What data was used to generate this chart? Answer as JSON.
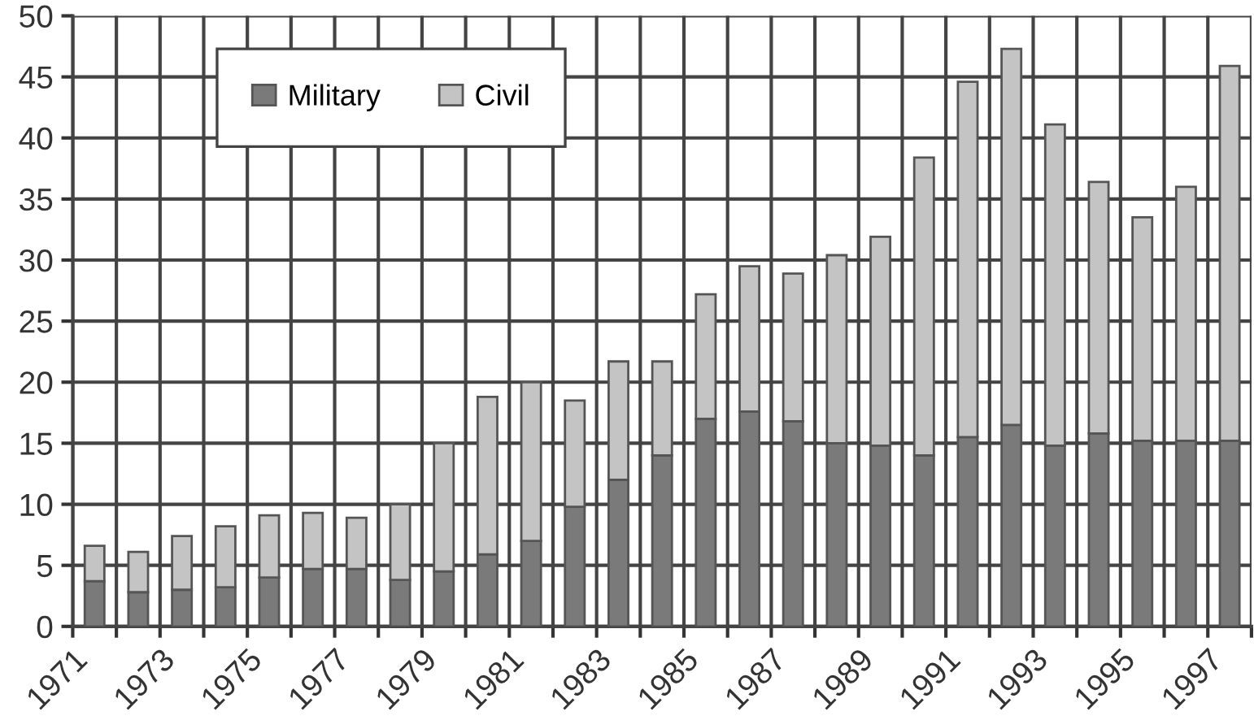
{
  "chart_data": {
    "type": "bar",
    "stacked": true,
    "x": [
      1971.5,
      1972.5,
      1973.5,
      1974.5,
      1975.5,
      1976.5,
      1977.5,
      1978.5,
      1979.5,
      1980.5,
      1981.5,
      1982.5,
      1983.5,
      1984.5,
      1985.5,
      1986.5,
      1987.5,
      1988.5,
      1989.5,
      1990.5,
      1991.5,
      1992.5,
      1993.5,
      1994.5,
      1995.5,
      1996.5,
      1997.5
    ],
    "series": [
      {
        "name": "Military",
        "color": "#7a7a7a",
        "values": [
          3.7,
          2.8,
          3,
          3.2,
          4,
          4.7,
          4.7,
          3.8,
          4.5,
          5.9,
          7,
          9.8,
          12,
          14,
          17,
          17.6,
          16.8,
          15,
          14.8,
          14,
          15.5,
          16.5,
          14.8,
          15.8,
          15.2,
          15.2,
          15.2
        ]
      },
      {
        "name": "Civil",
        "color": "#c4c4c4",
        "values": [
          2.9,
          3.3,
          4.4,
          5.0,
          5.1,
          4.6,
          4.2,
          6.2,
          10.5,
          12.9,
          13,
          8.7,
          9.7,
          7.7,
          10.2,
          11.9,
          12.1,
          15.4,
          17.1,
          24.4,
          29.1,
          30.8,
          26.3,
          20.6,
          18.3,
          20.8,
          30.7
        ]
      }
    ],
    "xlim": [
      1971,
      1998
    ],
    "xticks": [
      1971,
      {
        "value": 1972,
        "label": null
      },
      1973,
      {
        "value": 1974,
        "label": null
      },
      1975,
      {
        "value": 1976,
        "label": null
      },
      1977,
      {
        "value": 1978,
        "label": null
      },
      1979,
      {
        "value": 1980,
        "label": null
      },
      1981,
      {
        "value": 1982,
        "label": null
      },
      1983,
      {
        "value": 1984,
        "label": null
      },
      1985,
      {
        "value": 1986,
        "label": null
      },
      1987,
      {
        "value": 1988,
        "label": null
      },
      1989,
      {
        "value": 1990,
        "label": null
      },
      1991,
      {
        "value": 1992,
        "label": null
      },
      1993,
      {
        "value": 1994,
        "label": null
      },
      1995,
      {
        "value": 1996,
        "label": null
      },
      1997,
      {
        "value": 1998,
        "label": null
      }
    ],
    "ylim": [
      0,
      50
    ],
    "yticks": [
      0,
      5,
      10,
      15,
      20,
      25,
      30,
      35,
      40,
      45,
      50
    ],
    "grid": true,
    "legend": "top left"
  }
}
